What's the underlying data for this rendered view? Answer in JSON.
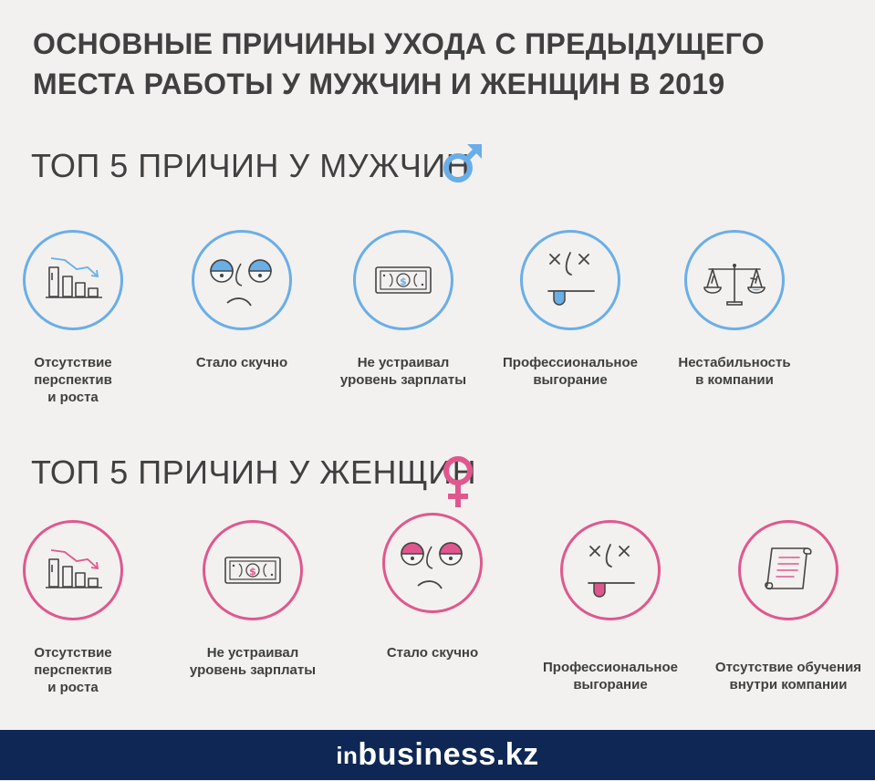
{
  "title_lines": [
    "ОСНОВНЫЕ ПРИЧИНЫ УХОДА С ПРЕДЫДУЩЕГО",
    "МЕСТА РАБОТЫ У МУЖЧИН И ЖЕНЩИН В 2019"
  ],
  "men": {
    "heading": "ТОП 5 ПРИЧИН У МУЖЧИН",
    "heading_icon": "male-symbol-icon",
    "accent": "#6aaee8",
    "items": [
      {
        "label": "Отсутствие\nперспектив\nи роста",
        "icon": "declining-bar-chart-icon"
      },
      {
        "label": "Стало скучно",
        "icon": "bored-face-icon"
      },
      {
        "label": "Не устраивал\nуровень зарплаты",
        "icon": "banknote-icon"
      },
      {
        "label": "Профессиональное\nвыгорание",
        "icon": "exhausted-face-icon"
      },
      {
        "label": "Нестабильность\nв компании",
        "icon": "scales-icon"
      }
    ]
  },
  "women": {
    "heading": "ТОП 5 ПРИЧИН У ЖЕНЩИН",
    "heading_icon": "female-symbol-icon",
    "accent": "#e0578e",
    "items": [
      {
        "label": "Отсутствие\nперспектив\nи роста",
        "icon": "declining-bar-chart-icon"
      },
      {
        "label": "Не устраивал\nуровень зарплаты",
        "icon": "banknote-icon"
      },
      {
        "label": "Стало скучно",
        "icon": "bored-face-icon"
      },
      {
        "label": "Профессиональное\nвыгорание",
        "icon": "exhausted-face-icon"
      },
      {
        "label": "Отсутствие обучения\nвнутри компании",
        "icon": "scroll-icon"
      }
    ]
  },
  "footer": {
    "logo_prefix": "in",
    "logo_main": "business.kz",
    "background": "#0f2755"
  }
}
